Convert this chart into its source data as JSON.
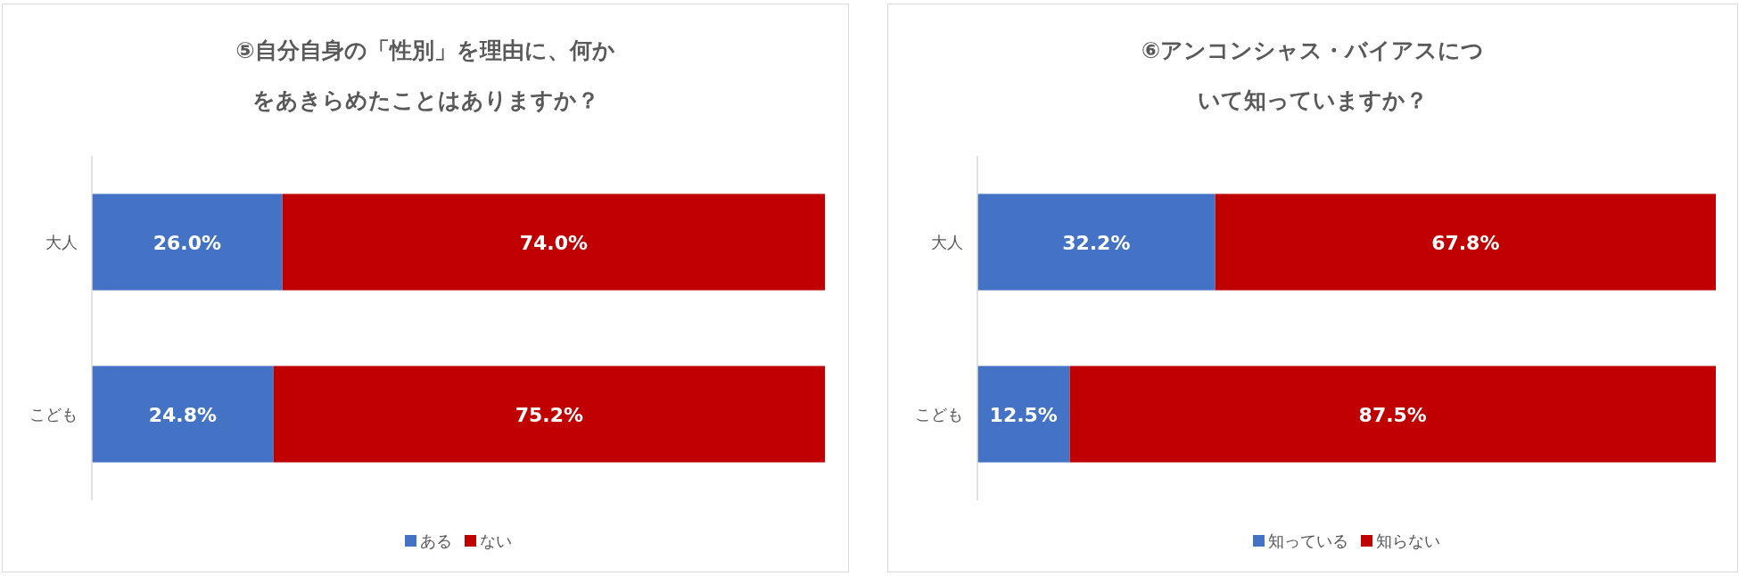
{
  "chart_data": [
    {
      "type": "bar",
      "orientation": "horizontal",
      "stacked": true,
      "title": "⑤自分自身の「性別」を理由に、何かをあきらめたことはありますか？",
      "categories": [
        "大人",
        "こども"
      ],
      "xlim": [
        0,
        100
      ],
      "legend": "bottom",
      "tick_labels": "y",
      "series": [
        {
          "name": "ある",
          "color": "#4472c4",
          "values": [
            26.0,
            24.8
          ],
          "value_labels": [
            "26.0%",
            "24.8%"
          ]
        },
        {
          "name": "ない",
          "color": "#c00000",
          "values": [
            74.0,
            75.2
          ],
          "value_labels": [
            "74.0%",
            "75.2%"
          ]
        }
      ]
    },
    {
      "type": "bar",
      "orientation": "horizontal",
      "stacked": true,
      "title": "⑥アンコンシャス・バイアスについて知っていますか？",
      "categories": [
        "大人",
        "こども"
      ],
      "xlim": [
        0,
        100
      ],
      "legend": "bottom",
      "tick_labels": "y",
      "series": [
        {
          "name": "知っている",
          "color": "#4472c4",
          "values": [
            32.2,
            12.5
          ],
          "value_labels": [
            "32.2%",
            "12.5%"
          ]
        },
        {
          "name": "知らない",
          "color": "#c00000",
          "values": [
            67.8,
            87.5
          ],
          "value_labels": [
            "67.8%",
            "87.5%"
          ]
        }
      ]
    }
  ]
}
